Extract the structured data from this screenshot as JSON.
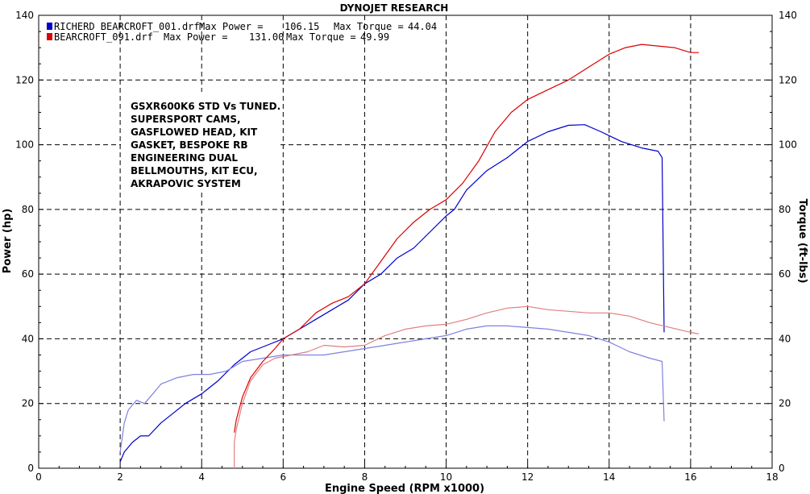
{
  "chart_data": {
    "type": "line",
    "title": "DYNOJET RESEARCH",
    "xlabel": "Engine Speed (RPM x1000)",
    "ylabel": "Power (hp)",
    "y2label": "Torque (ft-lbs)",
    "xlim": [
      0,
      18
    ],
    "ylim": [
      0,
      140
    ],
    "y2lim": [
      0,
      140
    ],
    "x_ticks": [
      0,
      2,
      4,
      6,
      8,
      10,
      12,
      14,
      16,
      18
    ],
    "y_ticks": [
      0,
      20,
      40,
      60,
      80,
      100,
      120,
      140
    ],
    "grid": true,
    "legend_position": "top-left",
    "legend": [
      {
        "file": "RICHERD BEARCROFT_001.drf",
        "power_label": "Max Power =",
        "power": "106.15",
        "torque_label": "Max Torque =",
        "torque": "44.04",
        "color": "#0000cc"
      },
      {
        "file": "BEARCROFT_091.drf",
        "power_label": "Max Power =",
        "power": "131.00",
        "torque_label": "Max Torque =",
        "torque": "49.99",
        "color": "#dd0000"
      }
    ],
    "annotation": [
      "GSXR600K6 STD Vs TUNED.",
      "SUPERSPORT CAMS,",
      "GASFLOWED HEAD, KIT",
      "GASKET, BESPOKE RB",
      "ENGINEERING DUAL",
      "BELLMOUTHS, KIT ECU,",
      "AKRAPOVIC SYSTEM"
    ],
    "series": [
      {
        "name": "RICHERD BEARCROFT_001.drf Power",
        "color": "#0000cc",
        "kind": "power",
        "points": [
          [
            2.0,
            2
          ],
          [
            2.1,
            5
          ],
          [
            2.3,
            8
          ],
          [
            2.5,
            10
          ],
          [
            2.7,
            10
          ],
          [
            3.0,
            14
          ],
          [
            3.3,
            17
          ],
          [
            3.6,
            20
          ],
          [
            4.0,
            23
          ],
          [
            4.4,
            27
          ],
          [
            4.8,
            32
          ],
          [
            5.2,
            36
          ],
          [
            5.6,
            38
          ],
          [
            6.0,
            40
          ],
          [
            6.4,
            43
          ],
          [
            6.8,
            46
          ],
          [
            7.2,
            49
          ],
          [
            7.6,
            52
          ],
          [
            8.0,
            57
          ],
          [
            8.4,
            60
          ],
          [
            8.8,
            65
          ],
          [
            9.2,
            68
          ],
          [
            9.6,
            73
          ],
          [
            10.0,
            78
          ],
          [
            10.2,
            80
          ],
          [
            10.5,
            86
          ],
          [
            11.0,
            92
          ],
          [
            11.5,
            96
          ],
          [
            12.0,
            101
          ],
          [
            12.5,
            104
          ],
          [
            13.0,
            106
          ],
          [
            13.4,
            106.2
          ],
          [
            13.8,
            104
          ],
          [
            14.3,
            101
          ],
          [
            14.8,
            99
          ],
          [
            15.2,
            98
          ],
          [
            15.3,
            96
          ],
          [
            15.35,
            42
          ]
        ]
      },
      {
        "name": "RICHERD BEARCROFT_001.drf Torque",
        "color": "#8080e0",
        "kind": "torque",
        "points": [
          [
            2.0,
            5
          ],
          [
            2.1,
            14
          ],
          [
            2.2,
            18
          ],
          [
            2.4,
            21
          ],
          [
            2.6,
            20
          ],
          [
            2.8,
            23
          ],
          [
            3.0,
            26
          ],
          [
            3.4,
            28
          ],
          [
            3.8,
            29
          ],
          [
            4.2,
            29
          ],
          [
            4.6,
            30
          ],
          [
            5.0,
            33
          ],
          [
            5.5,
            34
          ],
          [
            6.0,
            35
          ],
          [
            6.5,
            35
          ],
          [
            7.0,
            35
          ],
          [
            7.5,
            36
          ],
          [
            8.0,
            37
          ],
          [
            8.5,
            38
          ],
          [
            9.0,
            39
          ],
          [
            9.5,
            40
          ],
          [
            10.0,
            41
          ],
          [
            10.5,
            43
          ],
          [
            11.0,
            44
          ],
          [
            11.5,
            44
          ],
          [
            12.0,
            43.5
          ],
          [
            12.5,
            43
          ],
          [
            13.0,
            42
          ],
          [
            13.5,
            41
          ],
          [
            14.0,
            39
          ],
          [
            14.5,
            36
          ],
          [
            15.0,
            34
          ],
          [
            15.3,
            33
          ],
          [
            15.35,
            14.5
          ]
        ]
      },
      {
        "name": "BEARCROFT_091.drf Power",
        "color": "#dd0000",
        "kind": "power",
        "points": [
          [
            4.8,
            11
          ],
          [
            4.85,
            15
          ],
          [
            5.0,
            22
          ],
          [
            5.2,
            28
          ],
          [
            5.5,
            33
          ],
          [
            5.8,
            37
          ],
          [
            6.0,
            40
          ],
          [
            6.4,
            43
          ],
          [
            6.8,
            48
          ],
          [
            7.2,
            51
          ],
          [
            7.6,
            53
          ],
          [
            8.0,
            57
          ],
          [
            8.4,
            64
          ],
          [
            8.8,
            71
          ],
          [
            9.2,
            76
          ],
          [
            9.6,
            80
          ],
          [
            10.0,
            83
          ],
          [
            10.4,
            88
          ],
          [
            10.8,
            95
          ],
          [
            11.2,
            104
          ],
          [
            11.6,
            110
          ],
          [
            12.0,
            114
          ],
          [
            12.5,
            117
          ],
          [
            13.0,
            120
          ],
          [
            13.5,
            124
          ],
          [
            14.0,
            128
          ],
          [
            14.4,
            130
          ],
          [
            14.8,
            131
          ],
          [
            15.2,
            130.5
          ],
          [
            15.6,
            130
          ],
          [
            16.0,
            128.5
          ],
          [
            16.2,
            128.5
          ]
        ]
      },
      {
        "name": "BEARCROFT_091.drf Torque",
        "color": "#e08080",
        "kind": "torque",
        "points": [
          [
            4.8,
            0
          ],
          [
            4.8,
            8
          ],
          [
            4.85,
            12
          ],
          [
            5.0,
            20
          ],
          [
            5.2,
            27
          ],
          [
            5.5,
            32
          ],
          [
            5.8,
            34
          ],
          [
            6.2,
            35
          ],
          [
            6.6,
            36
          ],
          [
            7.0,
            38
          ],
          [
            7.5,
            37.5
          ],
          [
            8.0,
            38
          ],
          [
            8.5,
            41
          ],
          [
            9.0,
            43
          ],
          [
            9.5,
            44
          ],
          [
            10.0,
            44.5
          ],
          [
            10.5,
            46
          ],
          [
            11.0,
            48
          ],
          [
            11.5,
            49.5
          ],
          [
            12.0,
            50
          ],
          [
            12.5,
            49
          ],
          [
            13.0,
            48.5
          ],
          [
            13.5,
            48
          ],
          [
            14.0,
            48
          ],
          [
            14.5,
            47
          ],
          [
            15.0,
            45
          ],
          [
            15.5,
            43.5
          ],
          [
            16.0,
            42
          ],
          [
            16.2,
            41.5
          ]
        ]
      }
    ]
  }
}
